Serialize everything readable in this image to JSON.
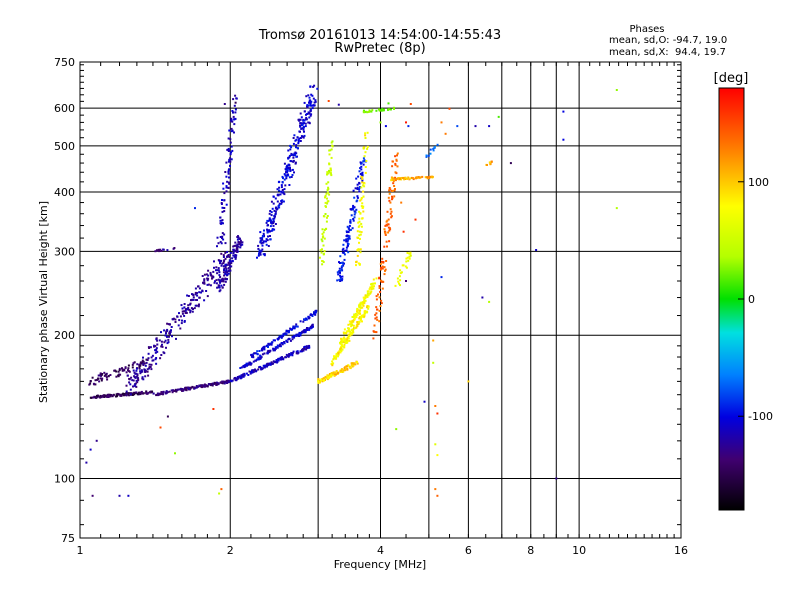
{
  "chart_data": {
    "type": "scatter",
    "title": "Tromsø 20161013 14:54:00-14:55:43",
    "subtitle": "RwPretec (8p)",
    "xlabel": "Frequency [MHz]",
    "ylabel": "Stationary phase Virtual Height [km]",
    "x_scale": "log",
    "y_scale": "log",
    "xlim": [
      1,
      16
    ],
    "ylim": [
      75,
      750
    ],
    "x_ticks": [
      1,
      2,
      4,
      6,
      8,
      10,
      16
    ],
    "x_tick_labels": [
      "1",
      "2",
      "4",
      "6",
      "8",
      "10",
      "16"
    ],
    "y_ticks": [
      75,
      100,
      200,
      300,
      400,
      500,
      600,
      750
    ],
    "y_tick_labels": [
      "75",
      "100",
      "200",
      "300",
      "400",
      "500",
      "600",
      "750"
    ],
    "grid": true,
    "phase_info": {
      "header": "Phases",
      "line_o": "mean, sd,O: -94.7, 19.0",
      "line_x": "mean, sd,X:  94.4, 19.7"
    },
    "colorbar": {
      "label": "[deg]",
      "range": [
        -180,
        180
      ],
      "ticks": [
        100,
        0,
        -100
      ],
      "tick_labels": [
        "100",
        "0",
        "-100"
      ]
    },
    "traces": [
      {
        "kind": "line",
        "freq_range": [
          1.05,
          1.4
        ],
        "height_range": [
          148,
          152
        ],
        "phase": -150,
        "n": 140,
        "jitter": 0.012
      },
      {
        "kind": "line",
        "freq_range": [
          1.05,
          1.35
        ],
        "height_range": [
          160,
          175
        ],
        "phase": -145,
        "n": 80,
        "jitter": 0.04
      },
      {
        "kind": "line",
        "freq_range": [
          1.4,
          2.0
        ],
        "height_range": [
          150,
          160
        ],
        "phase": -135,
        "n": 160,
        "jitter": 0.012
      },
      {
        "kind": "line",
        "freq_range": [
          2.0,
          2.9
        ],
        "height_range": [
          160,
          190
        ],
        "phase": -115,
        "n": 150,
        "jitter": 0.015
      },
      {
        "kind": "line",
        "freq_range": [
          2.1,
          2.95
        ],
        "height_range": [
          170,
          210
        ],
        "phase": -108,
        "n": 130,
        "jitter": 0.015
      },
      {
        "kind": "line",
        "freq_range": [
          2.2,
          3.0
        ],
        "height_range": [
          180,
          225
        ],
        "phase": -100,
        "n": 110,
        "jitter": 0.015
      },
      {
        "kind": "line",
        "freq_range": [
          1.25,
          2.0
        ],
        "height_range": [
          155,
          300
        ],
        "phase": -125,
        "n": 280,
        "jitter": 0.09
      },
      {
        "kind": "line",
        "freq_range": [
          1.9,
          2.1
        ],
        "height_range": [
          250,
          320
        ],
        "phase": -120,
        "n": 120,
        "jitter": 0.05
      },
      {
        "kind": "line",
        "freq_range": [
          1.9,
          2.05
        ],
        "height_range": [
          300,
          640
        ],
        "phase": -115,
        "n": 90,
        "jitter": 0.05
      },
      {
        "kind": "line",
        "freq_range": [
          2.3,
          2.95
        ],
        "height_range": [
          300,
          650
        ],
        "phase": -105,
        "n": 300,
        "jitter": 0.08
      },
      {
        "kind": "line",
        "freq_range": [
          1.4,
          1.55
        ],
        "height_range": [
          300,
          305
        ],
        "phase": -130,
        "n": 12,
        "jitter": 0.01
      },
      {
        "kind": "line",
        "freq_range": [
          3.0,
          3.6
        ],
        "height_range": [
          160,
          175
        ],
        "phase": 110,
        "n": 110,
        "jitter": 0.02
      },
      {
        "kind": "line",
        "freq_range": [
          3.2,
          3.8
        ],
        "height_range": [
          175,
          230
        ],
        "phase": 100,
        "n": 130,
        "jitter": 0.025
      },
      {
        "kind": "line",
        "freq_range": [
          3.3,
          3.9
        ],
        "height_range": [
          190,
          260
        ],
        "phase": 95,
        "n": 120,
        "jitter": 0.03
      },
      {
        "kind": "line",
        "freq_range": [
          3.05,
          3.2
        ],
        "height_range": [
          280,
          520
        ],
        "phase": 60,
        "n": 70,
        "jitter": 0.04
      },
      {
        "kind": "line",
        "freq_range": [
          3.3,
          3.7
        ],
        "height_range": [
          260,
          470
        ],
        "phase": -95,
        "n": 130,
        "jitter": 0.05
      },
      {
        "kind": "line",
        "freq_range": [
          3.6,
          3.75
        ],
        "height_range": [
          280,
          530
        ],
        "phase": 95,
        "n": 70,
        "jitter": 0.04
      },
      {
        "kind": "line",
        "freq_range": [
          3.9,
          4.3
        ],
        "height_range": [
          200,
          480
        ],
        "phase": 140,
        "n": 110,
        "jitter": 0.05
      },
      {
        "kind": "line",
        "freq_range": [
          4.2,
          5.1
        ],
        "height_range": [
          425,
          430
        ],
        "phase": 120,
        "n": 60,
        "jitter": 0.01
      },
      {
        "kind": "line",
        "freq_range": [
          4.3,
          4.6
        ],
        "height_range": [
          250,
          300
        ],
        "phase": 90,
        "n": 25,
        "jitter": 0.04
      },
      {
        "kind": "line",
        "freq_range": [
          3.7,
          4.3
        ],
        "height_range": [
          590,
          600
        ],
        "phase": 30,
        "n": 30,
        "jitter": 0.01
      },
      {
        "kind": "line",
        "freq_range": [
          4.9,
          5.3
        ],
        "height_range": [
          470,
          510
        ],
        "phase": -70,
        "n": 12,
        "jitter": 0.02
      },
      {
        "kind": "line",
        "freq_range": [
          6.4,
          6.9
        ],
        "height_range": [
          455,
          465
        ],
        "phase": 120,
        "n": 8,
        "jitter": 0.01
      }
    ],
    "scatter_points": [
      [
        1.05,
        115,
        -110
      ],
      [
        1.08,
        120,
        -130
      ],
      [
        1.03,
        108,
        -120
      ],
      [
        1.06,
        92,
        -140
      ],
      [
        1.2,
        92,
        -120
      ],
      [
        1.25,
        92,
        -110
      ],
      [
        1.5,
        135,
        -150
      ],
      [
        1.45,
        128,
        150
      ],
      [
        1.55,
        113,
        40
      ],
      [
        1.85,
        140,
        160
      ],
      [
        1.92,
        95,
        140
      ],
      [
        1.9,
        93,
        60
      ],
      [
        2.05,
        616,
        -150
      ],
      [
        1.95,
        612,
        -130
      ],
      [
        3.15,
        621,
        150
      ],
      [
        3.3,
        610,
        -120
      ],
      [
        4.15,
        614,
        20
      ],
      [
        4.6,
        612,
        150
      ],
      [
        4.5,
        560,
        170
      ],
      [
        4.55,
        550,
        -90
      ],
      [
        4.0,
        560,
        40
      ],
      [
        4.1,
        550,
        -100
      ],
      [
        5.5,
        598,
        150
      ],
      [
        5.3,
        560,
        130
      ],
      [
        5.7,
        550,
        -80
      ],
      [
        5.4,
        530,
        130
      ],
      [
        6.2,
        550,
        -120
      ],
      [
        6.9,
        575,
        20
      ],
      [
        6.6,
        550,
        -110
      ],
      [
        7.3,
        460,
        -150
      ],
      [
        8.2,
        302,
        -110
      ],
      [
        9.3,
        590,
        -100
      ],
      [
        9.3,
        515,
        -100
      ],
      [
        11.9,
        655,
        40
      ],
      [
        11.9,
        370,
        50
      ],
      [
        4.4,
        380,
        130
      ],
      [
        4.45,
        330,
        160
      ],
      [
        4.5,
        260,
        -140
      ],
      [
        5.3,
        265,
        -90
      ],
      [
        5.1,
        195,
        120
      ],
      [
        5.1,
        175,
        60
      ],
      [
        6.0,
        160,
        110
      ],
      [
        6.4,
        240,
        -120
      ],
      [
        6.6,
        235,
        50
      ],
      [
        5.15,
        142,
        130
      ],
      [
        5.2,
        137,
        160
      ],
      [
        5.15,
        118,
        80
      ],
      [
        5.2,
        112,
        100
      ],
      [
        5.15,
        95,
        130
      ],
      [
        5.2,
        92,
        140
      ],
      [
        4.3,
        127,
        40
      ],
      [
        9.0,
        100,
        -130
      ],
      [
        4.9,
        145,
        -110
      ],
      [
        1.7,
        370,
        -90
      ],
      [
        4.7,
        350,
        160
      ]
    ]
  }
}
